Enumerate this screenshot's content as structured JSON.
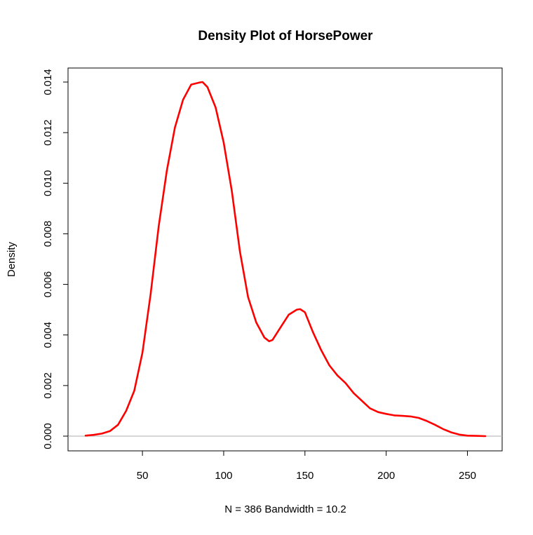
{
  "chart_data": {
    "type": "line",
    "title": "Density Plot of HorsePower",
    "xlabel": "N = 386   Bandwidth = 10.2",
    "ylabel": "Density",
    "xlim": [
      15,
      261
    ],
    "ylim": [
      0,
      0.014
    ],
    "xticks": [
      50,
      100,
      150,
      200,
      250
    ],
    "xtick_labels": [
      "50",
      "100",
      "150",
      "200",
      "250"
    ],
    "yticks": [
      0,
      0.002,
      0.004,
      0.006,
      0.008,
      0.01,
      0.012,
      0.014
    ],
    "ytick_labels": [
      "0.000",
      "0.002",
      "0.004",
      "0.006",
      "0.008",
      "0.010",
      "0.012",
      "0.014"
    ],
    "grid": false,
    "baseline": 0,
    "series": [
      {
        "color": "#ff0000",
        "x": [
          15,
          20,
          25,
          30,
          35,
          40,
          45,
          50,
          55,
          60,
          65,
          70,
          75,
          80,
          85,
          87,
          90,
          95,
          100,
          105,
          110,
          115,
          120,
          125,
          128,
          130,
          135,
          140,
          145,
          147,
          150,
          155,
          160,
          165,
          170,
          175,
          180,
          185,
          190,
          195,
          200,
          205,
          210,
          215,
          220,
          225,
          230,
          235,
          240,
          245,
          250,
          255,
          261
        ],
        "y": [
          2e-05,
          5e-05,
          0.0001,
          0.0002,
          0.00045,
          0.001,
          0.0018,
          0.0033,
          0.0056,
          0.0083,
          0.0105,
          0.0122,
          0.0133,
          0.0139,
          0.01398,
          0.014,
          0.0138,
          0.013,
          0.0116,
          0.0097,
          0.0073,
          0.0055,
          0.0045,
          0.0039,
          0.00375,
          0.0038,
          0.0043,
          0.0048,
          0.005,
          0.00502,
          0.0049,
          0.0041,
          0.0034,
          0.0028,
          0.0024,
          0.0021,
          0.0017,
          0.0014,
          0.0011,
          0.00095,
          0.00088,
          0.00082,
          0.0008,
          0.00078,
          0.00072,
          0.0006,
          0.00045,
          0.00028,
          0.00015,
          6e-05,
          2e-05,
          1e-05,
          0.0
        ]
      }
    ]
  },
  "colors": {
    "line": "#ff0000",
    "baseline": "#bebebe",
    "frame": "#000000"
  }
}
